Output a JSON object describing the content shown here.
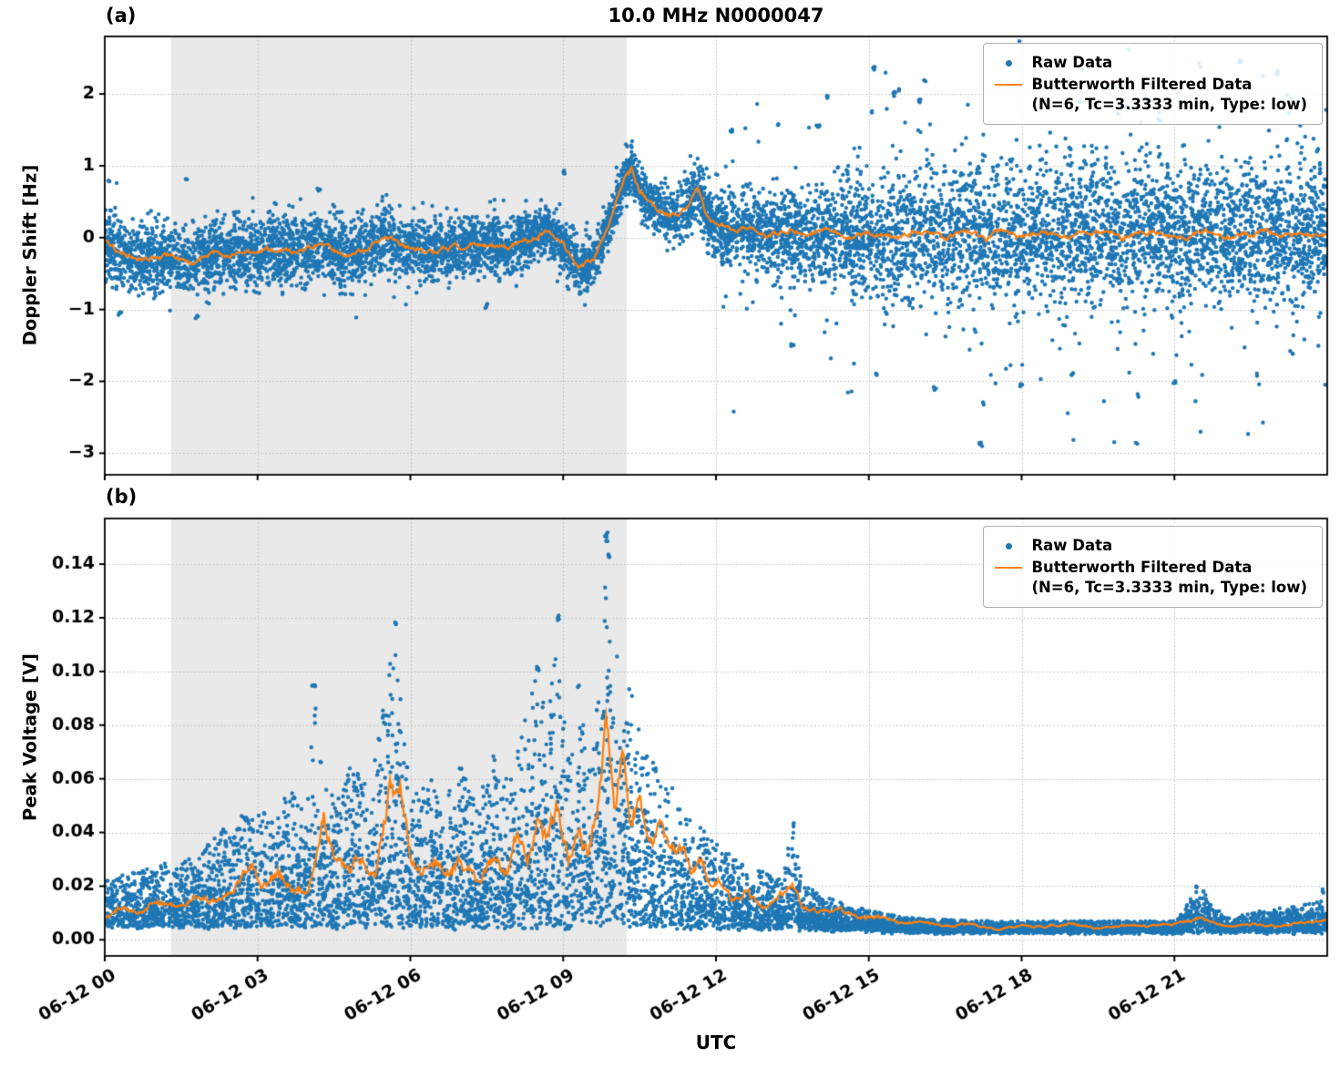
{
  "title": "10.0 MHz N0000047",
  "panel_a_label": "(a)",
  "panel_b_label": "(b)",
  "xlabel": "UTC",
  "legend": {
    "raw": "Raw Data",
    "filtered_line1": "Butterworth Filtered Data",
    "filtered_line2": "(N=6, Tc=3.3333 min, Type: low)"
  },
  "colors": {
    "raw": "#1f77b4",
    "filtered": "#ff7f0e",
    "shade": "#e9e9e9",
    "grid": "#b8b8b8",
    "axis": "#000000"
  },
  "chart_data": [
    {
      "type": "scatter",
      "panel": "a",
      "ylabel": "Doppler Shift [Hz]",
      "ylim": [
        -3.3,
        2.8
      ],
      "yticks": [
        -3,
        -2,
        -1,
        0,
        1,
        2
      ],
      "ytick_format": "int",
      "xlim": [
        0,
        24
      ],
      "xticks_hours": [
        0,
        3,
        6,
        9,
        12,
        15,
        18,
        21
      ],
      "xtick_labels": [
        "06-12 00",
        "06-12 03",
        "06-12 06",
        "06-12 09",
        "06-12 12",
        "06-12 15",
        "06-12 18",
        "06-12 21"
      ],
      "shaded_region_hours": [
        1.3,
        10.25
      ],
      "series": [
        {
          "name": "Raw Data",
          "type": "scatter_band",
          "n_points": 9000,
          "spread": {
            "x": [
              0,
              2,
              4,
              6,
              8,
              9.5,
              10.3,
              11,
              12,
              13,
              14,
              15,
              16,
              17,
              18,
              19,
              20,
              21,
              22,
              23,
              24
            ],
            "s": [
              0.45,
              0.4,
              0.45,
              0.4,
              0.35,
              0.3,
              0.25,
              0.35,
              0.45,
              0.5,
              0.6,
              0.75,
              0.85,
              0.9,
              0.85,
              0.9,
              0.85,
              0.9,
              0.9,
              0.9,
              0.85
            ]
          },
          "extra_points": [
            [
              0.1,
              0.78
            ],
            [
              0.3,
              -1.05
            ],
            [
              1.6,
              0.82
            ],
            [
              1.8,
              -1.1
            ],
            [
              4.2,
              0.68
            ],
            [
              7.5,
              -0.95
            ],
            [
              9.0,
              0.92
            ],
            [
              12.3,
              1.5
            ],
            [
              13.2,
              1.55
            ],
            [
              13.5,
              -1.5
            ],
            [
              14.0,
              1.55
            ],
            [
              14.2,
              1.95
            ],
            [
              15.05,
              1.75
            ],
            [
              15.1,
              2.35
            ],
            [
              15.15,
              -1.9
            ],
            [
              15.5,
              2.0
            ],
            [
              15.6,
              2.05
            ],
            [
              16.0,
              1.9
            ],
            [
              16.1,
              2.2
            ],
            [
              16.3,
              -2.1
            ],
            [
              17.2,
              -2.87
            ],
            [
              17.25,
              -2.3
            ],
            [
              18.0,
              -2.05
            ],
            [
              19.0,
              -1.9
            ],
            [
              20.25,
              -2.85
            ],
            [
              20.3,
              -2.2
            ],
            [
              20.5,
              1.9
            ],
            [
              21.0,
              -2.0
            ],
            [
              21.2,
              1.85
            ],
            [
              21.5,
              2.4
            ],
            [
              22.0,
              2.1
            ],
            [
              22.3,
              2.45
            ],
            [
              22.6,
              -1.9
            ],
            [
              23.0,
              2.3
            ],
            [
              23.3,
              -1.6
            ],
            [
              23.4,
              1.9
            ]
          ]
        },
        {
          "name": "Butterworth Filtered Data",
          "type": "line",
          "x": [
            0,
            0.3,
            0.7,
            1.2,
            1.7,
            2.2,
            2.7,
            3.2,
            3.7,
            4.2,
            4.7,
            5.2,
            5.5,
            5.8,
            6.3,
            6.8,
            7.3,
            7.8,
            8.3,
            8.7,
            9.0,
            9.3,
            9.6,
            9.9,
            10.2,
            10.35,
            10.5,
            10.7,
            10.9,
            11.1,
            11.3,
            11.5,
            11.65,
            11.8,
            12.0,
            12.3,
            12.6,
            13.0,
            13.4,
            13.8,
            14.2,
            14.6,
            15.0,
            15.5,
            16.0,
            16.5,
            17.0,
            17.3,
            17.6,
            18.0,
            18.4,
            18.8,
            19.2,
            19.6,
            20.0,
            20.4,
            20.8,
            21.2,
            21.6,
            22.0,
            22.4,
            22.8,
            23.2,
            23.6,
            24.0
          ],
          "y": [
            -0.05,
            -0.2,
            -0.3,
            -0.25,
            -0.35,
            -0.2,
            -0.25,
            -0.15,
            -0.2,
            -0.1,
            -0.25,
            -0.15,
            0.05,
            -0.1,
            -0.2,
            -0.15,
            -0.1,
            -0.15,
            -0.05,
            0.1,
            -0.1,
            -0.45,
            -0.3,
            0.2,
            0.8,
            0.95,
            0.65,
            0.5,
            0.35,
            0.3,
            0.35,
            0.5,
            0.7,
            0.35,
            0.2,
            0.1,
            0.15,
            0.05,
            0.1,
            0.05,
            0.1,
            0.0,
            0.05,
            0.0,
            0.1,
            0.0,
            0.1,
            -0.05,
            0.1,
            0.0,
            0.1,
            0.0,
            0.05,
            0.1,
            0.0,
            0.1,
            0.05,
            0.0,
            0.1,
            0.0,
            0.05,
            0.1,
            0.0,
            0.05,
            0.0
          ]
        }
      ]
    },
    {
      "type": "scatter",
      "panel": "b",
      "ylabel": "Peak Voltage [V]",
      "ylim": [
        -0.006,
        0.157
      ],
      "yticks": [
        0,
        0.02,
        0.04,
        0.06,
        0.08,
        0.1,
        0.12,
        0.14
      ],
      "ytick_format": "2f",
      "xlim": [
        0,
        24
      ],
      "xticks_hours": [
        0,
        3,
        6,
        9,
        12,
        15,
        18,
        21
      ],
      "xtick_labels": [
        "06-12 00",
        "06-12 03",
        "06-12 06",
        "06-12 09",
        "06-12 12",
        "06-12 15",
        "06-12 18",
        "06-12 21"
      ],
      "shaded_region_hours": [
        1.3,
        10.25
      ],
      "series": [
        {
          "name": "Raw Data",
          "type": "scatter_band",
          "n_points": 8000,
          "lower": {
            "x": [
              0,
              14,
              16,
              24
            ],
            "y": [
              0.005,
              0.004,
              0.003,
              0.003
            ]
          },
          "upper": {
            "x": [
              0,
              0.5,
              1,
              1.5,
              2,
              2.5,
              3,
              3.3,
              3.6,
              3.9,
              4.1,
              4.3,
              4.6,
              4.9,
              5.2,
              5.5,
              5.7,
              5.9,
              6.1,
              6.4,
              6.7,
              7.0,
              7.3,
              7.6,
              7.9,
              8.2,
              8.5,
              8.7,
              8.9,
              9.1,
              9.3,
              9.5,
              9.7,
              9.85,
              10.0,
              10.2,
              10.4,
              10.6,
              10.8,
              11.0,
              11.2,
              11.5,
              11.8,
              12.1,
              12.4,
              12.7,
              13.0,
              13.3,
              13.5,
              13.7,
              14.0,
              14.3,
              14.6,
              15.0,
              15.5,
              16.0,
              17.0,
              18.0,
              19.0,
              20.0,
              21.0,
              21.5,
              22.0,
              22.5,
              23.0,
              23.5,
              24.0
            ],
            "y": [
              0.022,
              0.025,
              0.028,
              0.03,
              0.035,
              0.045,
              0.05,
              0.045,
              0.06,
              0.05,
              0.095,
              0.06,
              0.055,
              0.07,
              0.06,
              0.09,
              0.118,
              0.07,
              0.055,
              0.06,
              0.055,
              0.065,
              0.05,
              0.07,
              0.06,
              0.08,
              0.102,
              0.08,
              0.121,
              0.07,
              0.095,
              0.075,
              0.09,
              0.152,
              0.11,
              0.1,
              0.09,
              0.075,
              0.065,
              0.06,
              0.055,
              0.045,
              0.04,
              0.035,
              0.03,
              0.027,
              0.025,
              0.022,
              0.044,
              0.02,
              0.018,
              0.015,
              0.013,
              0.011,
              0.009,
              0.008,
              0.007,
              0.007,
              0.007,
              0.007,
              0.007,
              0.02,
              0.008,
              0.01,
              0.012,
              0.013,
              0.015
            ]
          },
          "extra_points": [
            [
              9.85,
              0.151
            ],
            [
              9.87,
              0.148
            ],
            [
              9.9,
              0.143
            ],
            [
              8.9,
              0.12
            ],
            [
              5.7,
              0.118
            ],
            [
              8.5,
              0.101
            ],
            [
              9.3,
              0.094
            ],
            [
              4.1,
              0.094
            ],
            [
              13.5,
              0.043
            ],
            [
              21.45,
              0.02
            ],
            [
              23.9,
              0.018
            ]
          ]
        },
        {
          "name": "Butterworth Filtered Data",
          "type": "line",
          "x": [
            0,
            0.3,
            0.6,
            1.0,
            1.4,
            1.8,
            2.2,
            2.6,
            2.9,
            3.1,
            3.4,
            3.7,
            4.0,
            4.3,
            4.5,
            4.8,
            5.0,
            5.3,
            5.6,
            5.8,
            6.0,
            6.2,
            6.5,
            6.8,
            7.0,
            7.3,
            7.6,
            7.9,
            8.1,
            8.3,
            8.5,
            8.7,
            8.9,
            9.1,
            9.3,
            9.5,
            9.7,
            9.85,
            10.0,
            10.15,
            10.3,
            10.5,
            10.7,
            10.9,
            11.1,
            11.3,
            11.5,
            11.7,
            11.9,
            12.1,
            12.3,
            12.6,
            12.9,
            13.2,
            13.5,
            13.7,
            14.0,
            14.4,
            14.8,
            15.2,
            15.6,
            16.0,
            16.5,
            17.0,
            17.5,
            18.0,
            18.5,
            19.0,
            19.5,
            20.0,
            20.5,
            21.0,
            21.5,
            22.0,
            22.5,
            23.0,
            23.5,
            24.0
          ],
          "y": [
            0.008,
            0.012,
            0.01,
            0.015,
            0.012,
            0.016,
            0.014,
            0.02,
            0.03,
            0.02,
            0.025,
            0.018,
            0.02,
            0.045,
            0.03,
            0.025,
            0.03,
            0.025,
            0.055,
            0.057,
            0.03,
            0.025,
            0.03,
            0.025,
            0.03,
            0.022,
            0.03,
            0.025,
            0.04,
            0.03,
            0.045,
            0.035,
            0.05,
            0.03,
            0.04,
            0.03,
            0.05,
            0.083,
            0.05,
            0.065,
            0.045,
            0.055,
            0.035,
            0.04,
            0.03,
            0.035,
            0.025,
            0.03,
            0.02,
            0.022,
            0.015,
            0.018,
            0.012,
            0.015,
            0.02,
            0.012,
            0.01,
            0.012,
            0.008,
            0.009,
            0.006,
            0.007,
            0.005,
            0.006,
            0.004,
            0.005,
            0.005,
            0.006,
            0.004,
            0.005,
            0.005,
            0.006,
            0.008,
            0.005,
            0.006,
            0.005,
            0.006,
            0.007
          ]
        }
      ]
    }
  ]
}
